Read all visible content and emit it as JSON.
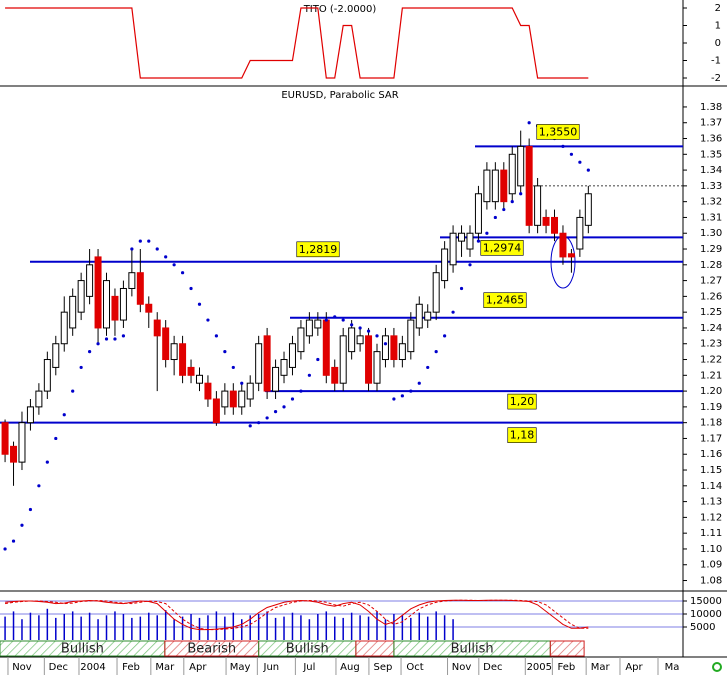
{
  "chart_data": [
    {
      "type": "line",
      "title": "TITO (-2.0000)",
      "color": "#e00000",
      "xlim": [
        -0.6,
        80.2
      ],
      "ylim": [
        -2.4,
        2.457
      ],
      "yticks": [
        2,
        1,
        0,
        -1,
        -2
      ],
      "values": [
        2,
        2,
        2,
        2,
        2,
        2,
        2,
        2,
        2,
        2,
        2,
        2,
        2,
        2,
        2,
        2,
        -2,
        -2,
        -2,
        -2,
        -2,
        -2,
        -2,
        -2,
        -2,
        -2,
        -2,
        -2,
        -2,
        -1,
        -1,
        -1,
        -1,
        -1,
        -1,
        2,
        2,
        2,
        -2,
        -2,
        1,
        1,
        -2,
        -2,
        -2,
        -2,
        -2,
        2,
        2,
        2,
        2,
        2,
        2,
        2,
        2,
        2,
        2,
        2,
        2,
        2,
        2,
        1,
        1,
        -2,
        -2,
        -2,
        -2,
        -2,
        -2,
        -2
      ]
    },
    {
      "type": "candlestick",
      "title": "EURUSD, Parabolic SAR",
      "xlim": [
        -0.6,
        80.2
      ],
      "ylim": [
        1.074,
        1.392
      ],
      "yticks": [
        1.38,
        1.37,
        1.36,
        1.35,
        1.34,
        1.33,
        1.32,
        1.31,
        {
          "value": 1.3,
          "label": "1.30"
        },
        1.29,
        1.28,
        1.27,
        1.26,
        1.25,
        1.24,
        1.23,
        1.22,
        1.21,
        {
          "value": 1.2,
          "label": "1.20"
        },
        1.19,
        1.18,
        1.17,
        1.16,
        1.15,
        1.14,
        1.13,
        1.12,
        1.11,
        {
          "value": 1.1,
          "label": "1.10"
        },
        1.09,
        1.08
      ],
      "xticks": [
        {
          "value": 2,
          "label": "Nov"
        },
        {
          "value": 6.3,
          "label": "Dec"
        },
        {
          "value": 10.4,
          "label": "2004"
        },
        {
          "value": 14.9,
          "label": "Feb"
        },
        {
          "value": 18.9,
          "label": "Mar"
        },
        {
          "value": 22.8,
          "label": "Apr"
        },
        {
          "value": 27.8,
          "label": "May"
        },
        {
          "value": 31.5,
          "label": "Jun"
        },
        {
          "value": 36,
          "label": "Jul"
        },
        {
          "value": 40.8,
          "label": "Aug"
        },
        {
          "value": 44.7,
          "label": "Sep"
        },
        {
          "value": 48.5,
          "label": "Oct"
        },
        {
          "value": 54,
          "label": "Nov"
        },
        {
          "value": 57.7,
          "label": "Dec"
        },
        {
          "value": 63.2,
          "label": "2005"
        },
        {
          "value": 66.4,
          "label": "Feb"
        },
        {
          "value": 70.4,
          "label": "Mar"
        },
        {
          "value": 74.4,
          "label": "Apr"
        },
        {
          "value": 78.9,
          "label": "Ma"
        }
      ],
      "up_color": "#ffffff",
      "down_color": "#e00000",
      "open": [
        1.18,
        1.165,
        1.155,
        1.18,
        1.19,
        1.2,
        1.215,
        1.23,
        1.24,
        1.25,
        1.26,
        1.285,
        1.24,
        1.26,
        1.245,
        1.265,
        1.275,
        1.255,
        1.245,
        1.24,
        1.22,
        1.23,
        1.215,
        1.205,
        1.205,
        1.195,
        1.19,
        1.2,
        1.19,
        1.195,
        1.205,
        1.235,
        1.2,
        1.21,
        1.215,
        1.225,
        1.235,
        1.24,
        1.245,
        1.215,
        1.205,
        1.225,
        1.23,
        1.235,
        1.205,
        1.22,
        1.235,
        1.22,
        1.225,
        1.24,
        1.245,
        1.25,
        1.27,
        1.28,
        1.295,
        1.29,
        1.3,
        1.32,
        1.32,
        1.34,
        1.325,
        1.33,
        1.355,
        1.305,
        1.31,
        1.31,
        1.3,
        1.287,
        1.29,
        1.305
      ],
      "high": [
        1.182,
        1.168,
        1.187,
        1.195,
        1.205,
        1.225,
        1.235,
        1.26,
        1.265,
        1.275,
        1.29,
        1.29,
        1.275,
        1.265,
        1.27,
        1.29,
        1.29,
        1.26,
        1.25,
        1.245,
        1.235,
        1.235,
        1.22,
        1.215,
        1.21,
        1.2,
        1.205,
        1.205,
        1.205,
        1.21,
        1.235,
        1.24,
        1.22,
        1.225,
        1.235,
        1.245,
        1.25,
        1.25,
        1.25,
        1.22,
        1.24,
        1.245,
        1.24,
        1.24,
        1.23,
        1.24,
        1.24,
        1.235,
        1.25,
        1.26,
        1.255,
        1.28,
        1.295,
        1.305,
        1.305,
        1.305,
        1.33,
        1.345,
        1.345,
        1.345,
        1.355,
        1.365,
        1.36,
        1.335,
        1.315,
        1.315,
        1.305,
        1.29,
        1.315,
        1.33
      ],
      "low": [
        1.155,
        1.14,
        1.15,
        1.175,
        1.185,
        1.195,
        1.21,
        1.225,
        1.235,
        1.245,
        1.255,
        1.23,
        1.235,
        1.235,
        1.24,
        1.26,
        1.25,
        1.24,
        1.2,
        1.215,
        1.21,
        1.205,
        1.205,
        1.2,
        1.19,
        1.178,
        1.185,
        1.185,
        1.185,
        1.19,
        1.2,
        1.195,
        1.195,
        1.205,
        1.21,
        1.22,
        1.23,
        1.235,
        1.205,
        1.2,
        1.2,
        1.22,
        1.225,
        1.2,
        1.2,
        1.215,
        1.215,
        1.215,
        1.22,
        1.235,
        1.24,
        1.245,
        1.265,
        1.275,
        1.285,
        1.285,
        1.295,
        1.315,
        1.315,
        1.315,
        1.32,
        1.325,
        1.3,
        1.3,
        1.3,
        1.295,
        1.28,
        1.275,
        1.285,
        1.3
      ],
      "close": [
        1.16,
        1.155,
        1.18,
        1.19,
        1.2,
        1.22,
        1.23,
        1.25,
        1.26,
        1.27,
        1.28,
        1.24,
        1.27,
        1.245,
        1.265,
        1.275,
        1.255,
        1.25,
        1.235,
        1.22,
        1.23,
        1.21,
        1.21,
        1.21,
        1.195,
        1.18,
        1.2,
        1.19,
        1.2,
        1.205,
        1.23,
        1.2,
        1.215,
        1.22,
        1.23,
        1.24,
        1.245,
        1.245,
        1.21,
        1.205,
        1.235,
        1.24,
        1.235,
        1.205,
        1.225,
        1.235,
        1.22,
        1.23,
        1.245,
        1.255,
        1.25,
        1.275,
        1.29,
        1.3,
        1.3,
        1.3,
        1.325,
        1.34,
        1.34,
        1.32,
        1.35,
        1.355,
        1.305,
        1.33,
        1.305,
        1.3,
        1.285,
        1.285,
        1.31,
        1.325
      ],
      "sar": [
        1.1,
        1.105,
        1.115,
        1.125,
        1.14,
        1.155,
        1.17,
        1.185,
        1.2,
        1.215,
        1.225,
        1.23,
        1.233,
        1.233,
        1.235,
        1.29,
        1.295,
        1.295,
        1.29,
        1.285,
        1.28,
        1.275,
        1.265,
        1.255,
        1.245,
        1.235,
        1.225,
        1.215,
        1.205,
        1.178,
        1.18,
        1.183,
        1.187,
        1.19,
        1.195,
        1.2,
        1.21,
        1.22,
        1.245,
        1.247,
        1.245,
        1.242,
        1.24,
        1.238,
        1.235,
        1.23,
        1.195,
        1.197,
        1.2,
        1.205,
        1.215,
        1.225,
        1.235,
        1.25,
        1.265,
        1.28,
        1.295,
        1.3,
        1.31,
        1.315,
        1.32,
        1.325,
        1.37,
        1.368,
        1.365,
        1.36,
        1.355,
        1.35,
        1.345,
        1.34
      ],
      "sar_color": "#0000cc",
      "level_color": "#0000cc",
      "levels": [
        {
          "value": 1.355,
          "label": "1,3550"
        },
        {
          "value": 1.2974,
          "label": "1,2974"
        },
        {
          "value": 1.2819,
          "label": "1,2819"
        },
        {
          "value": 1.2465,
          "label": "1,2465"
        },
        {
          "value": 1.2,
          "label": "1,20"
        },
        {
          "value": 1.18,
          "label": "1,18"
        },
        {
          "value": 1.33,
          "style": "dotted"
        }
      ]
    },
    {
      "type": "oscillator",
      "xlim": [
        -0.6,
        80.2
      ],
      "ylim": [
        0,
        18460
      ],
      "yticks": [
        15000,
        10000,
        5000
      ],
      "bar_color": "#0000cc",
      "values": [
        9000,
        11000,
        8000,
        10500,
        9500,
        12000,
        8500,
        10000,
        11000,
        9000,
        10500,
        8000,
        9500,
        11000,
        10000,
        8500,
        9000,
        10500,
        9500,
        11500,
        8000,
        9000,
        10000,
        8500,
        9500,
        11000,
        9000,
        10500,
        8000,
        9500,
        10000,
        11000,
        8500,
        9000,
        10500,
        9500,
        8000,
        10000,
        11000,
        9000,
        8500,
        10500,
        9500,
        9000,
        11000,
        8000,
        10000,
        9500,
        8500,
        10500,
        9000,
        11000,
        9500,
        8000
      ],
      "series": [
        {
          "color": "#e00000",
          "values": [
            14500,
            14800,
            15000,
            15000,
            14800,
            14500,
            14000,
            14200,
            14800,
            15000,
            15200,
            15000,
            14500,
            14200,
            14000,
            14500,
            15000,
            14800,
            14000,
            11000,
            8000,
            6000,
            4500,
            4000,
            4000,
            4200,
            4500,
            5000,
            6000,
            8000,
            10500,
            12500,
            13500,
            14500,
            15000,
            15200,
            15000,
            14500,
            13500,
            13000,
            14000,
            14500,
            13500,
            11000,
            8000,
            6000,
            7000,
            9500,
            12000,
            13500,
            14500,
            15000,
            15200,
            15300,
            15300,
            15200,
            15200,
            15300,
            15300,
            15300,
            15200,
            15000,
            14800,
            13500,
            11000,
            8500,
            6000,
            4500,
            4500,
            5000
          ]
        },
        {
          "color": "#e00000",
          "dash": true,
          "values": [
            14000,
            14500,
            14800,
            15000,
            15000,
            14800,
            14500,
            14000,
            14200,
            14800,
            15000,
            15200,
            15000,
            14500,
            14200,
            14000,
            14500,
            15000,
            14800,
            14000,
            11000,
            8000,
            6000,
            4500,
            4000,
            4000,
            4200,
            4500,
            5000,
            6000,
            8000,
            10500,
            12500,
            13500,
            14500,
            15000,
            15200,
            15000,
            14500,
            13500,
            13000,
            14000,
            14500,
            13500,
            11000,
            8000,
            6000,
            7000,
            9500,
            12000,
            13500,
            14500,
            15000,
            15200,
            15300,
            15300,
            15200,
            15200,
            15300,
            15300,
            15300,
            15200,
            15000,
            14800,
            13500,
            11000,
            8500,
            6000,
            4500,
            4500
          ]
        }
      ],
      "bands": [
        {
          "start": -0.6,
          "end": 18.9,
          "label": "Bullish",
          "color": "#2e8b2e"
        },
        {
          "start": 18.9,
          "end": 30,
          "label": "Bearish",
          "color": "#d02020"
        },
        {
          "start": 30,
          "end": 41.5,
          "label": "Bullish",
          "color": "#2e8b2e"
        },
        {
          "start": 41.5,
          "end": 46,
          "color": "#d02020"
        },
        {
          "start": 46,
          "end": 64.5,
          "label": "Bullish",
          "color": "#2e8b2e"
        },
        {
          "start": 64.5,
          "end": 68.5,
          "color": "#d02020"
        }
      ]
    }
  ]
}
